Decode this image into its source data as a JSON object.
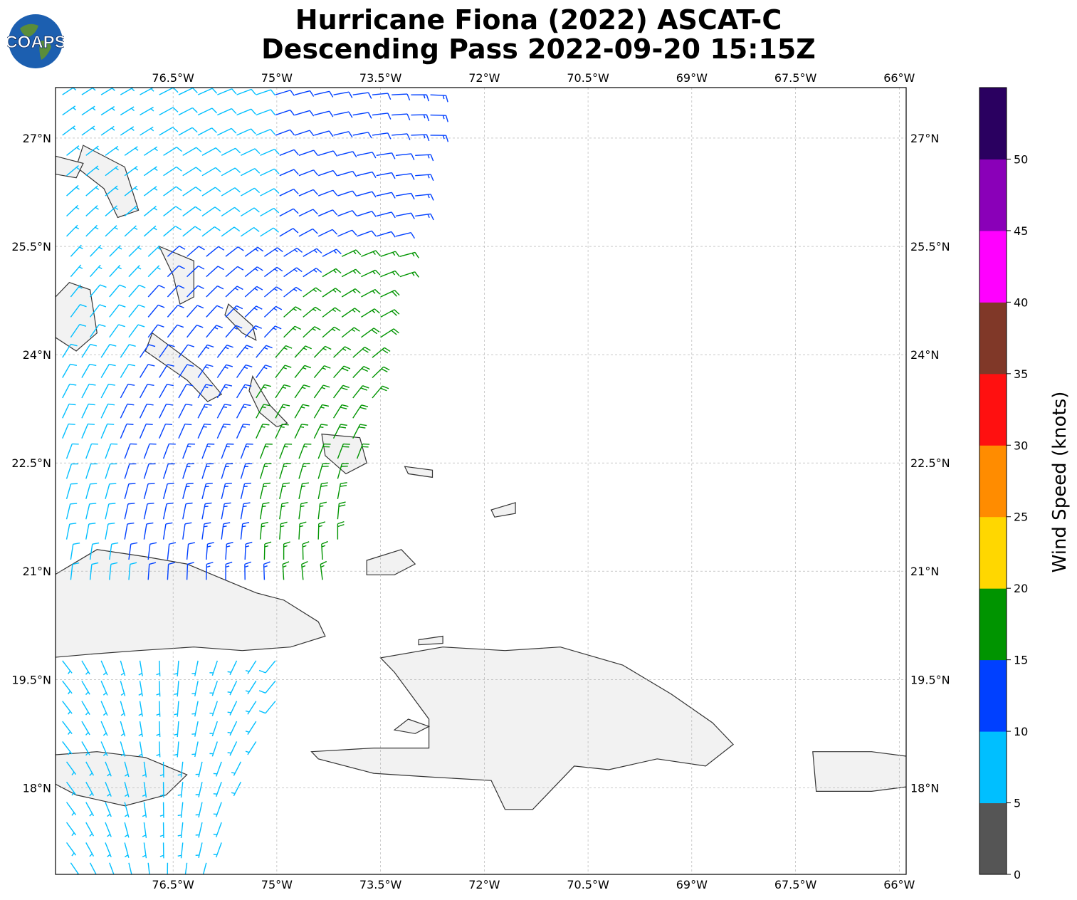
{
  "title_line1": "Hurricane Fiona (2022) ASCAT-C",
  "title_line2": "Descending Pass 2022-09-20 15:15Z",
  "logo_text": "COAPS",
  "map": {
    "lon_range": [
      -78.2,
      -65.9
    ],
    "lat_range": [
      16.8,
      27.7
    ],
    "lon_ticks": [
      "76.5°W",
      "75°W",
      "73.5°W",
      "72°W",
      "70.5°W",
      "69°W",
      "67.5°W",
      "66°W"
    ],
    "lat_ticks": [
      "27°N",
      "25.5°N",
      "24°N",
      "22.5°N",
      "21°N",
      "19.5°N",
      "18°N"
    ],
    "grid": true,
    "land_color": "#f2f2f2",
    "coast_color": "#333333"
  },
  "colorbar": {
    "label": "Wind Speed (knots)",
    "ticks": [
      "0",
      "5",
      "10",
      "15",
      "20",
      "25",
      "30",
      "35",
      "40",
      "45",
      "50"
    ],
    "colors": [
      "#555555",
      "#00bfff",
      "#0040ff",
      "#009400",
      "#ffd700",
      "#ff8c00",
      "#ff1010",
      "#803828",
      "#ff00ff",
      "#8a00b8",
      "#2a0060"
    ]
  }
}
